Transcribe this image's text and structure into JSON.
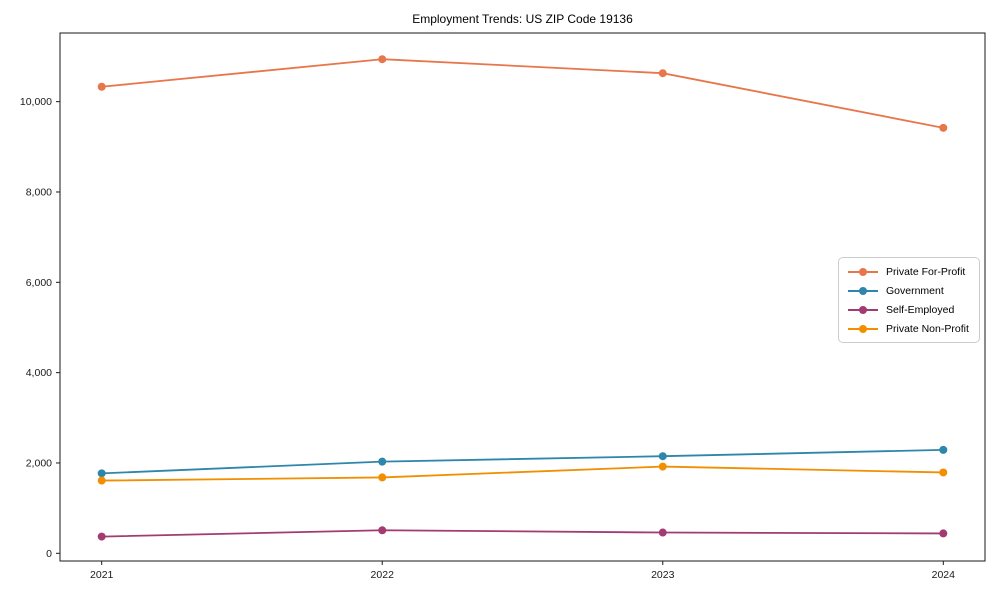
{
  "chart_data": {
    "type": "line",
    "title": "Employment Trends: US ZIP Code 19136",
    "x": [
      "2021",
      "2022",
      "2023",
      "2024"
    ],
    "y_ticks": [
      0,
      2000,
      4000,
      6000,
      8000,
      10000
    ],
    "y_tick_labels": [
      "0",
      "2,000",
      "4,000",
      "6,000",
      "8,000",
      "10,000"
    ],
    "xlabel": "",
    "ylabel": "",
    "ylim": [
      -170,
      11520
    ],
    "grid": false,
    "legend_position": "center right",
    "series": [
      {
        "name": "Private For-Profit",
        "color": "#E8764B",
        "values": [
          10330,
          10940,
          10630,
          9420
        ]
      },
      {
        "name": "Government",
        "color": "#2E86AB",
        "values": [
          1770,
          2030,
          2150,
          2290
        ]
      },
      {
        "name": "Self-Employed",
        "color": "#A23B72",
        "values": [
          370,
          510,
          460,
          440
        ]
      },
      {
        "name": "Private Non-Profit",
        "color": "#F18F01",
        "values": [
          1610,
          1680,
          1920,
          1790
        ]
      }
    ]
  }
}
